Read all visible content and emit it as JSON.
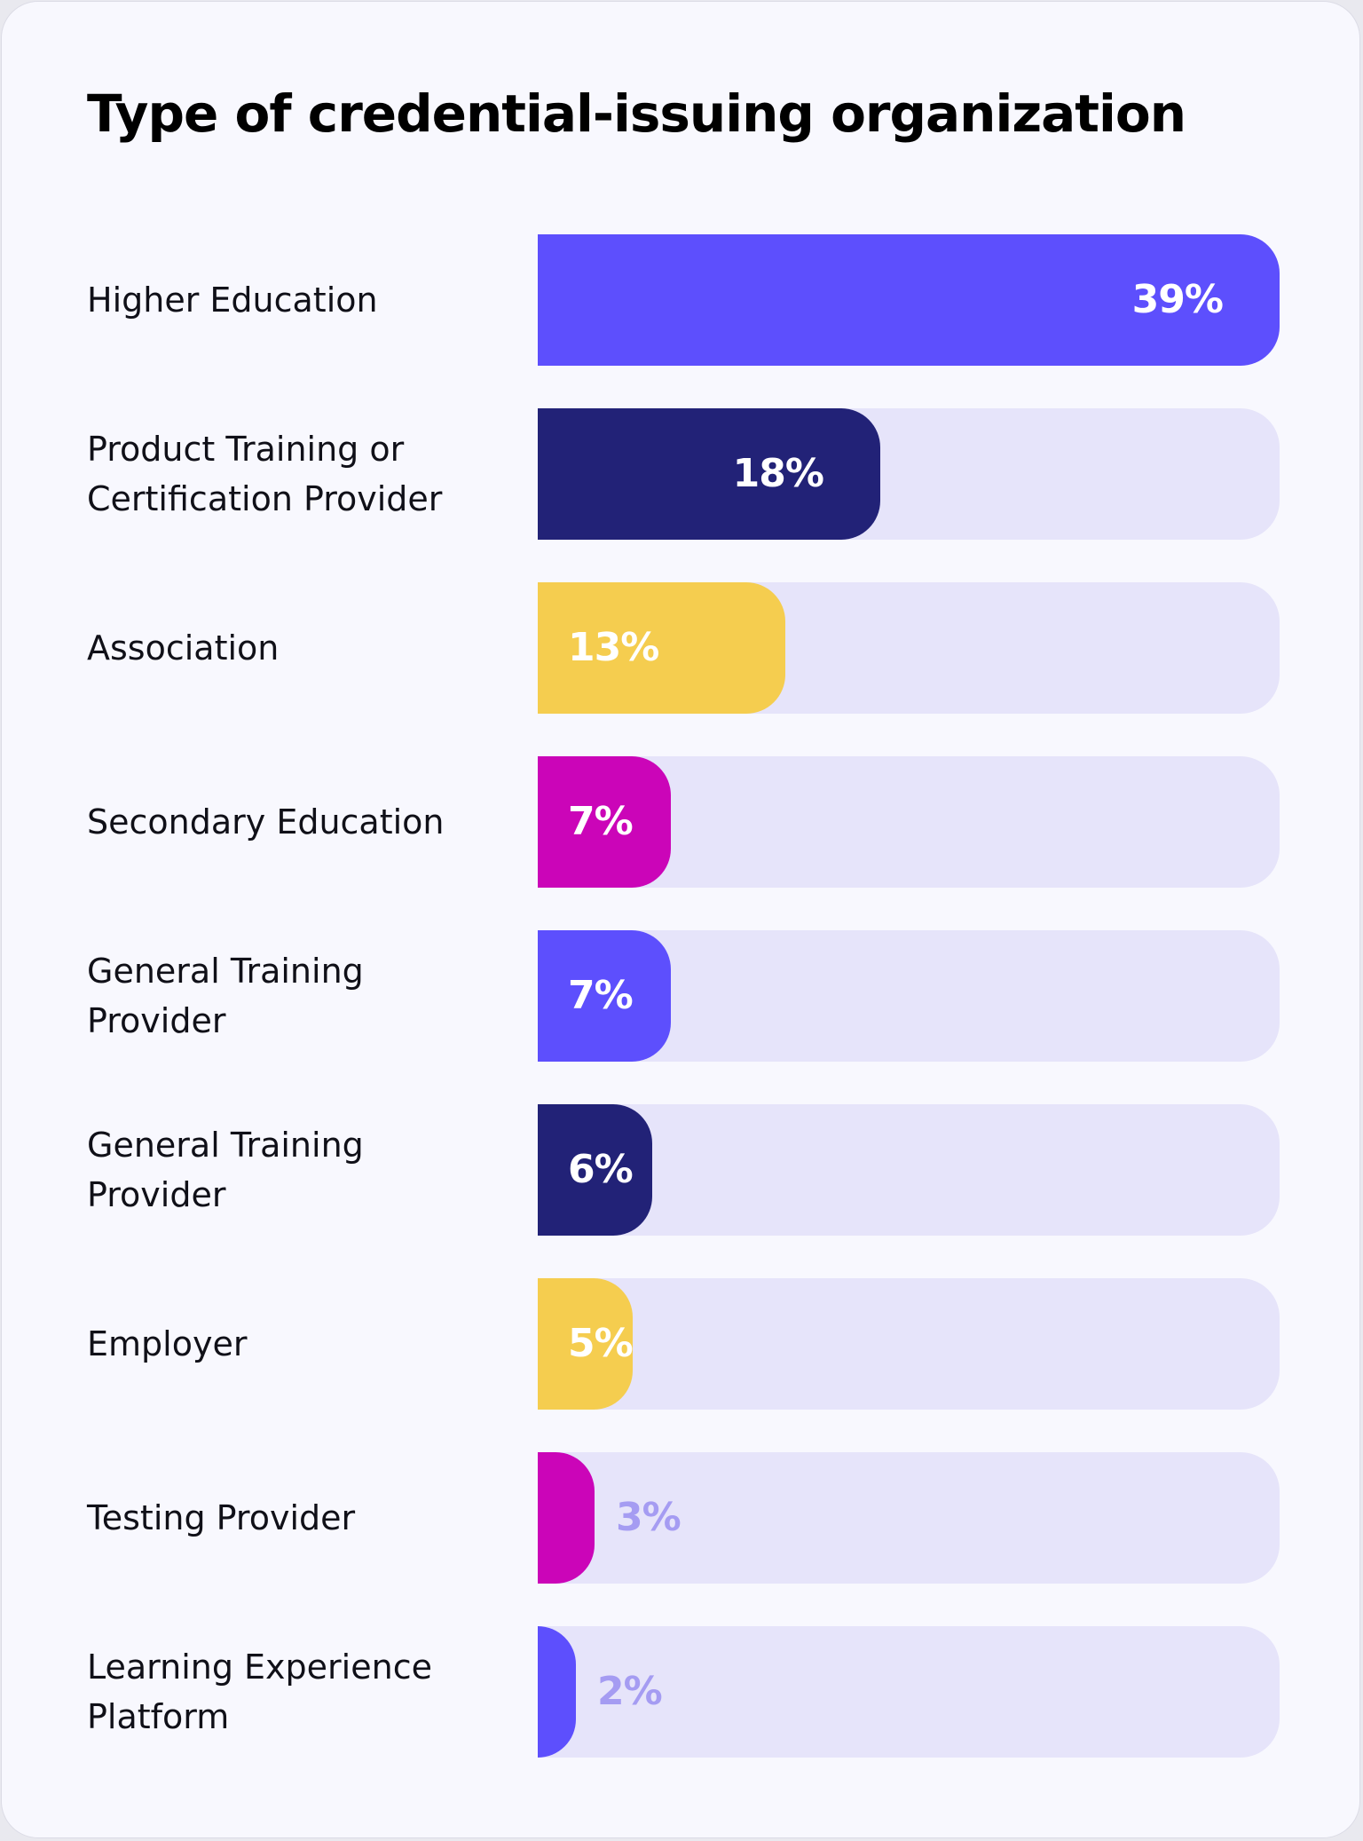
{
  "chart_data": {
    "type": "bar",
    "orientation": "horizontal",
    "title": "Type of credential-issuing organization",
    "categories": [
      "Higher Education",
      "Product Training or Certification Provider",
      "Association",
      "Secondary Education",
      "General Training Provider",
      "General Training Provider",
      "Employer",
      "Testing Provider",
      "Learning Experience Platform"
    ],
    "values": [
      39,
      18,
      13,
      7,
      7,
      6,
      5,
      3,
      2
    ],
    "value_labels": [
      "39%",
      "18%",
      "13%",
      "7%",
      "7%",
      "6%",
      "5%",
      "3%",
      "2%"
    ],
    "max": 39,
    "bar_colors": [
      "#5d4ffd",
      "#222277",
      "#f5cd4f",
      "#cb05b8",
      "#5d4ffd",
      "#222277",
      "#f5cd4f",
      "#cb05b8",
      "#5d4ffd"
    ],
    "track_color": "#e6e4fa",
    "label_inside_color": "#ffffff",
    "label_outside_color": "#a59cf2"
  }
}
